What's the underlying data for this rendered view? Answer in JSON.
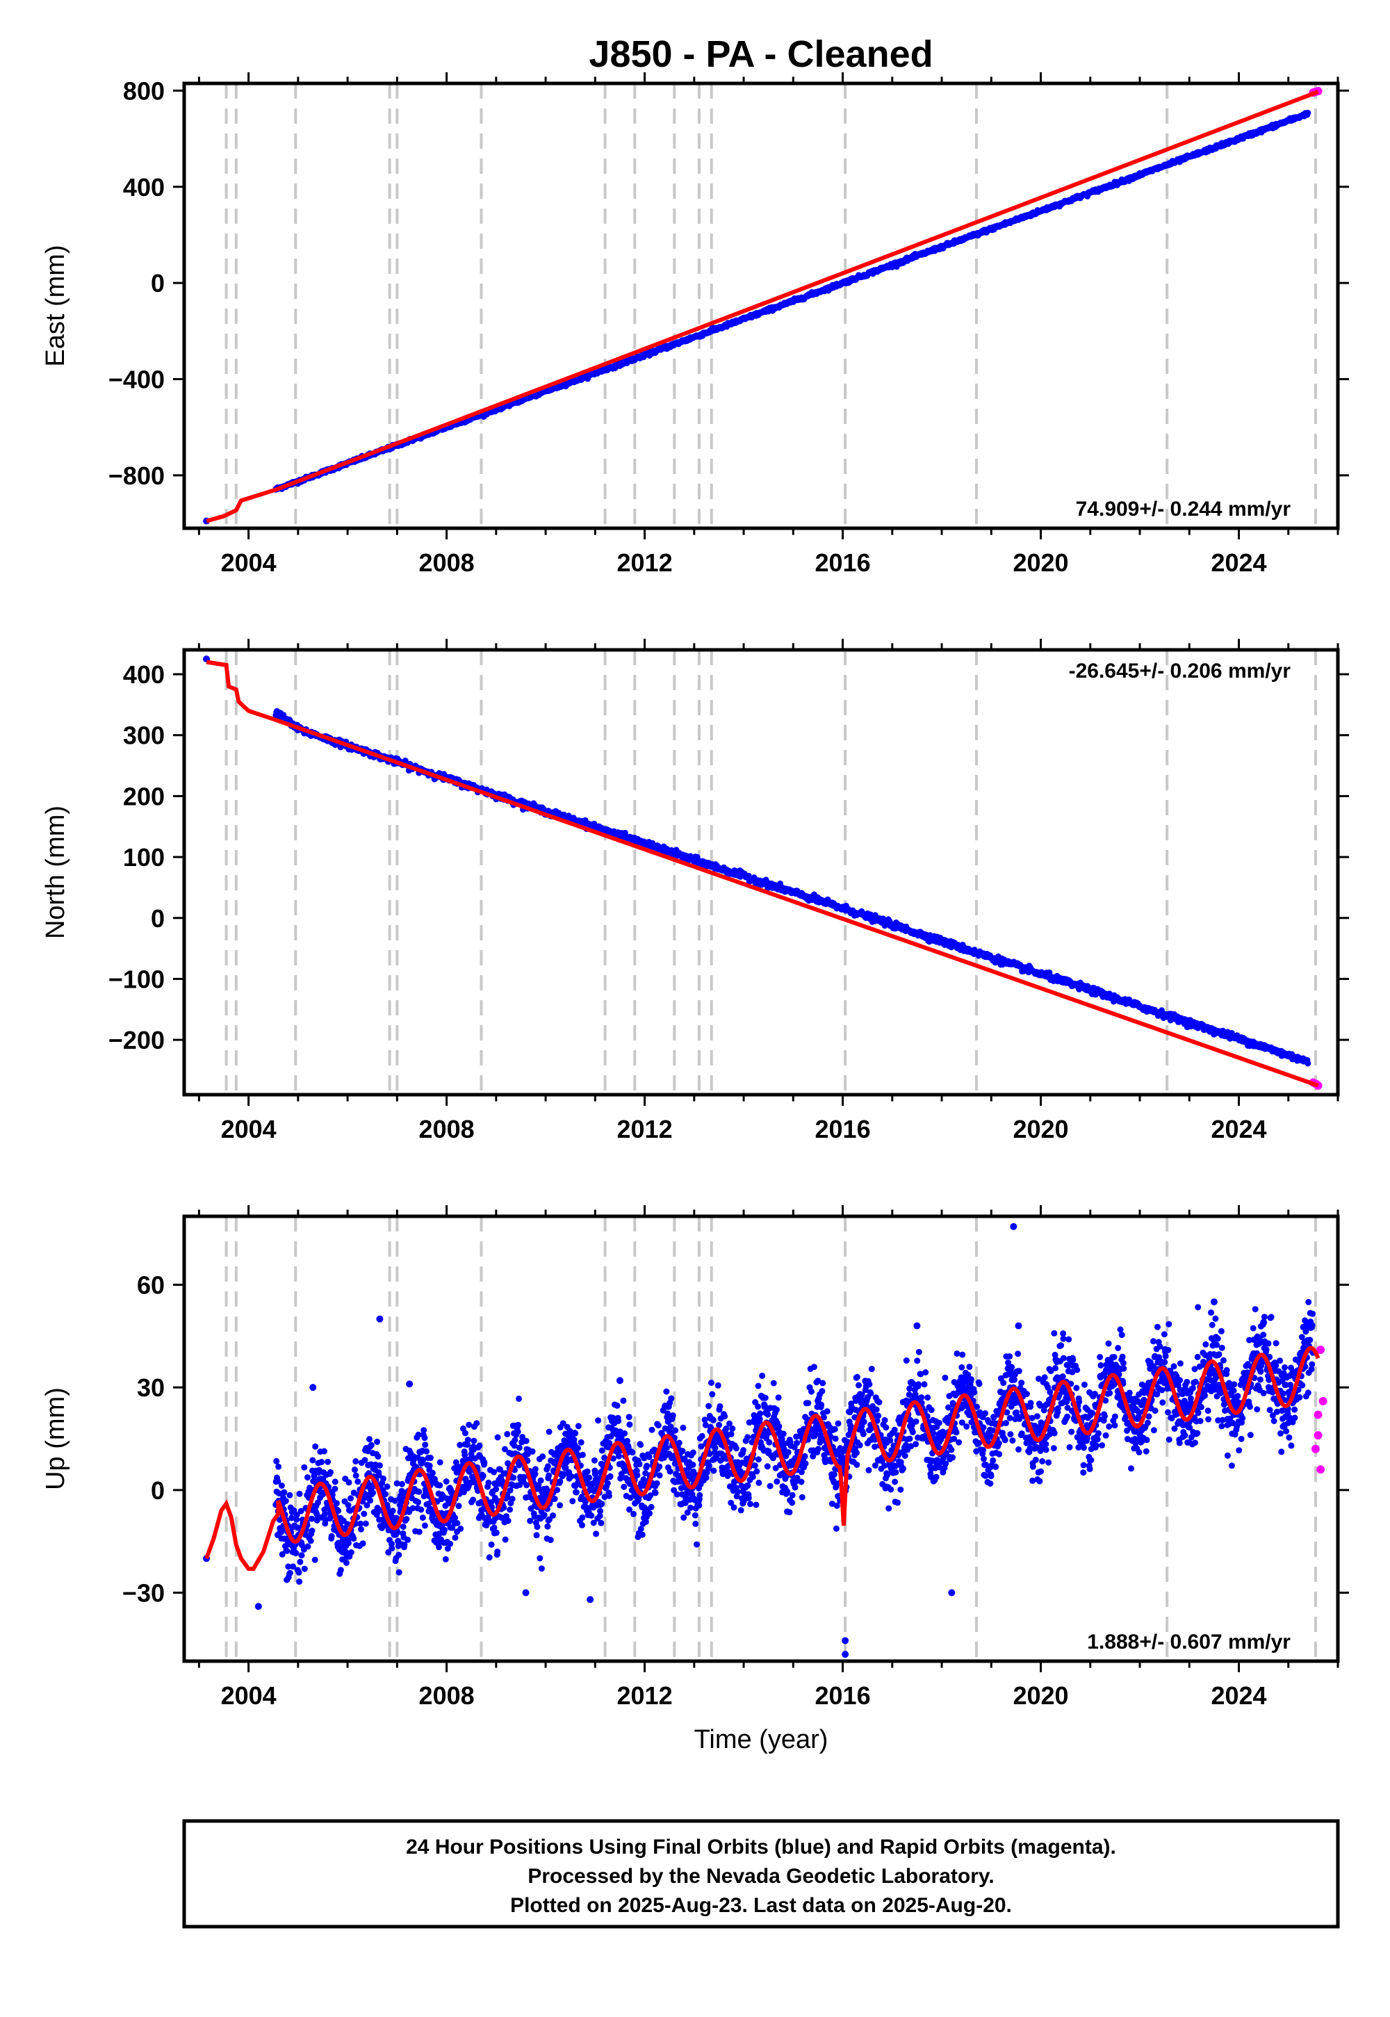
{
  "title": "J850  - PA - Cleaned",
  "xlabel": "Time (year)",
  "footer": {
    "line1": "24 Hour Positions Using Final Orbits (blue) and Rapid Orbits (magenta).",
    "line2": "Processed by the Nevada Geodetic Laboratory.",
    "line3": "Plotted on 2025-Aug-23. Last data on 2025-Aug-20."
  },
  "colors": {
    "final_orbits": "#0000ff",
    "rapid_orbits": "#ff00ff",
    "model": "#ff0000",
    "equipment_lines": "#c8c8c8"
  },
  "chart_data": [
    {
      "type": "scatter",
      "ylabel": "East (mm)",
      "rate": "74.909+/- 0.244 mm/yr",
      "rate_position": "bottom-right",
      "xlim": [
        2002.7,
        2026.0
      ],
      "ylim": [
        -1020,
        830
      ],
      "yticks": [
        -800,
        -400,
        0,
        400,
        800
      ],
      "xticks": [
        2004,
        2008,
        2012,
        2016,
        2020,
        2024
      ],
      "vlines": [
        2003.55,
        2003.75,
        2004.95,
        2006.85,
        2007.0,
        2008.7,
        2011.2,
        2011.8,
        2012.6,
        2013.1,
        2013.35,
        2016.05,
        2018.7,
        2022.55,
        2025.55
      ],
      "series": [
        {
          "name": "Final Orbits",
          "color": "#0000ff",
          "x": [
            2003.15,
            2004.55,
            2005.0,
            2006.0,
            2007.0,
            2008.0,
            2009.0,
            2010.0,
            2011.0,
            2012.0,
            2013.0,
            2014.0,
            2015.0,
            2016.0,
            2017.0,
            2018.0,
            2019.0,
            2020.0,
            2021.0,
            2022.0,
            2023.0,
            2024.0,
            2025.4
          ],
          "y": [
            -990,
            -858,
            -825,
            -750,
            -675,
            -600,
            -525,
            -450,
            -375,
            -300,
            -225,
            -150,
            -75,
            0,
            75,
            150,
            225,
            300,
            375,
            450,
            525,
            600,
            705
          ]
        },
        {
          "name": "Rapid Orbits",
          "color": "#ff00ff",
          "x": [
            2025.5,
            2025.55,
            2025.6
          ],
          "y": [
            792,
            795,
            798
          ]
        },
        {
          "name": "Model",
          "color": "#ff0000",
          "x": [
            2003.15,
            2003.5,
            2003.75,
            2003.85,
            2004.55,
            2025.6
          ],
          "y": [
            -990,
            -970,
            -945,
            -905,
            -860,
            795
          ]
        }
      ]
    },
    {
      "type": "scatter",
      "ylabel": "North (mm)",
      "rate": "-26.645+/- 0.206 mm/yr",
      "rate_position": "top-right",
      "xlim": [
        2002.7,
        2026.0
      ],
      "ylim": [
        -290,
        440
      ],
      "yticks": [
        -200,
        -100,
        0,
        100,
        200,
        300,
        400
      ],
      "xticks": [
        2004,
        2008,
        2012,
        2016,
        2020,
        2024
      ],
      "vlines": [
        2003.55,
        2003.75,
        2004.95,
        2006.85,
        2007.0,
        2008.7,
        2011.2,
        2011.8,
        2012.6,
        2013.1,
        2013.35,
        2016.05,
        2018.7,
        2022.55,
        2025.55
      ],
      "series": [
        {
          "name": "Final Orbits",
          "color": "#0000ff",
          "x": [
            2003.15,
            2004.55,
            2005.0,
            2006.0,
            2007.0,
            2008.0,
            2009.0,
            2010.0,
            2011.0,
            2012.0,
            2013.0,
            2014.0,
            2015.0,
            2016.0,
            2017.0,
            2018.0,
            2019.0,
            2020.0,
            2021.0,
            2022.0,
            2023.0,
            2024.0,
            2025.4
          ],
          "y": [
            425,
            338,
            310,
            283,
            256,
            229,
            202,
            175,
            149,
            122,
            95,
            69,
            42,
            16,
            -11,
            -38,
            -65,
            -92,
            -118,
            -145,
            -172,
            -198,
            -236
          ]
        },
        {
          "name": "Rapid Orbits",
          "color": "#ff00ff",
          "x": [
            2025.5,
            2025.55,
            2025.6
          ],
          "y": [
            -270,
            -272,
            -275
          ]
        },
        {
          "name": "Model",
          "color": "#ff0000",
          "x": [
            2003.15,
            2003.55,
            2003.6,
            2003.75,
            2003.8,
            2004.0,
            2004.55,
            2025.6
          ],
          "y": [
            420,
            415,
            380,
            375,
            355,
            340,
            325,
            -275
          ]
        }
      ]
    },
    {
      "type": "scatter",
      "ylabel": "Up (mm)",
      "rate": "1.888+/- 0.607 mm/yr",
      "rate_position": "bottom-right",
      "xlim": [
        2002.7,
        2026.0
      ],
      "ylim": [
        -50,
        80
      ],
      "yticks": [
        -30,
        0,
        30,
        60
      ],
      "xticks": [
        2004,
        2008,
        2012,
        2016,
        2020,
        2024
      ],
      "vlines": [
        2003.55,
        2003.75,
        2004.95,
        2006.85,
        2007.0,
        2008.7,
        2011.2,
        2011.8,
        2012.6,
        2013.1,
        2013.35,
        2016.05,
        2018.7,
        2022.55,
        2025.55
      ],
      "trend_mm_per_yr": 1.888,
      "seasonal_amplitude_mm": 8,
      "scatter_spread_mm": 6,
      "outliers": {
        "x": [
          2006.65,
          2007.25,
          2011.5,
          2016.05,
          2016.05,
          2017.5,
          2018.2,
          2019.45,
          2019.55,
          2010.9,
          2023.5,
          2024.5,
          2004.2,
          2005.3,
          2009.6
        ],
        "y": [
          50,
          31,
          32,
          -44,
          -48,
          48,
          -30,
          77,
          48,
          -32,
          55,
          49,
          -34,
          30,
          -30
        ]
      },
      "series": [
        {
          "name": "Final Orbits",
          "color": "#0000ff"
        },
        {
          "name": "Rapid Orbits",
          "color": "#ff00ff",
          "x": [
            2025.55,
            2025.6,
            2025.6,
            2025.65,
            2025.65,
            2025.7
          ],
          "y": [
            12,
            22,
            16,
            41,
            6,
            26
          ]
        },
        {
          "name": "Model",
          "color": "#ff0000"
        }
      ]
    }
  ]
}
